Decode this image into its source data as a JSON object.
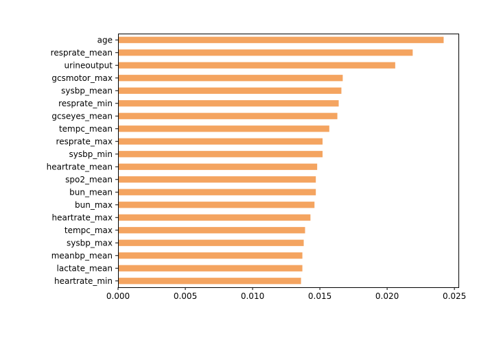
{
  "chart_data": {
    "type": "bar",
    "orientation": "horizontal",
    "categories": [
      "age",
      "resprate_mean",
      "urineoutput",
      "gcsmotor_max",
      "sysbp_mean",
      "resprate_min",
      "gcseyes_mean",
      "tempc_mean",
      "resprate_max",
      "sysbp_min",
      "heartrate_mean",
      "spo2_mean",
      "bun_mean",
      "bun_max",
      "heartrate_max",
      "tempc_max",
      "sysbp_max",
      "meanbp_mean",
      "lactate_mean",
      "heartrate_min"
    ],
    "values": [
      0.0242,
      0.0219,
      0.0206,
      0.0167,
      0.0166,
      0.0164,
      0.0163,
      0.0157,
      0.0152,
      0.0152,
      0.0148,
      0.0147,
      0.0147,
      0.0146,
      0.0143,
      0.0139,
      0.0138,
      0.0137,
      0.0137,
      0.0136
    ],
    "xlim": [
      0,
      0.0253
    ],
    "xticks": [
      "0.000",
      "0.005",
      "0.010",
      "0.015",
      "0.020",
      "0.025"
    ],
    "xtick_values": [
      0,
      0.005,
      0.01,
      0.015,
      0.02,
      0.025
    ],
    "title": "",
    "xlabel": "",
    "ylabel": "",
    "grid": false,
    "bar_color": "#f4a460"
  }
}
